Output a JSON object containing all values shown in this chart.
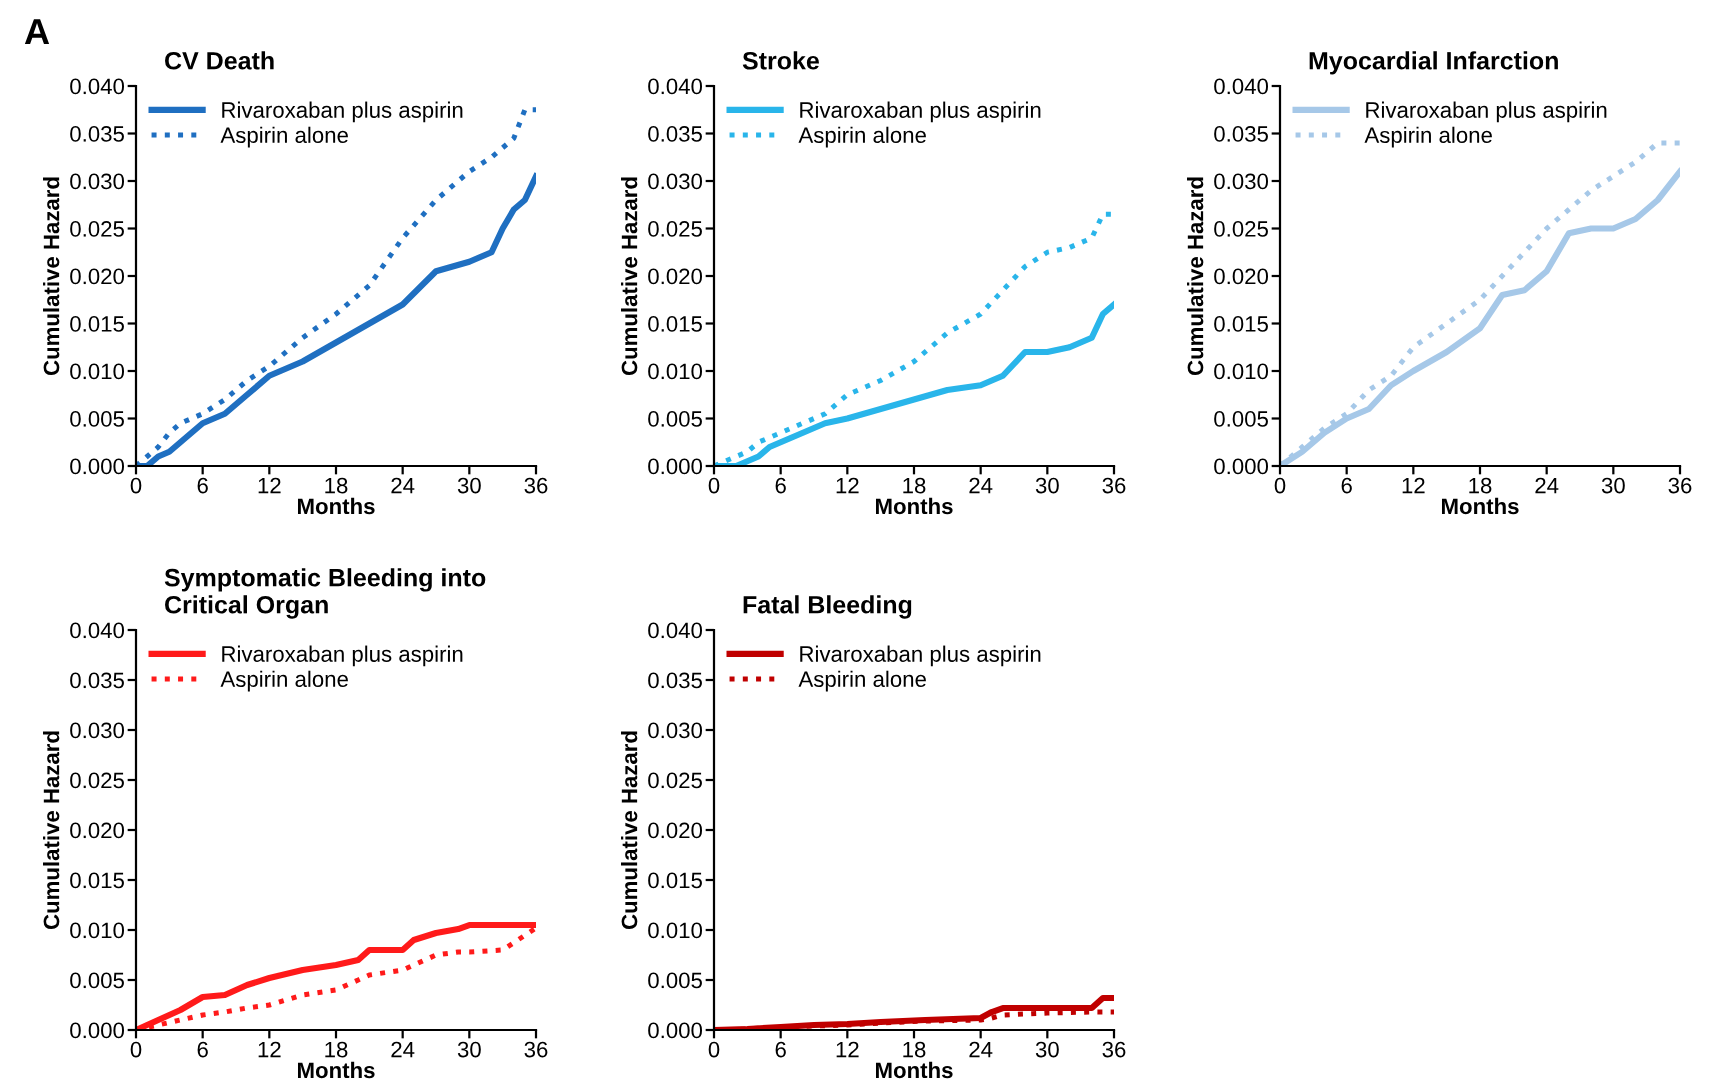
{
  "chart_data": [
    {
      "type": "line",
      "title": "CV Death",
      "annotations": [
        "A"
      ],
      "xlabel": "Months",
      "ylabel": "Cumulative Hazard",
      "legend": "top left",
      "grid": false,
      "xlim": [
        0,
        36
      ],
      "xticks": [
        0,
        6,
        12,
        18,
        24,
        30,
        36
      ],
      "ylim": [
        0,
        0.04
      ],
      "yticks": [
        {
          "value": 0,
          "label": "0.000"
        },
        {
          "value": 0.005,
          "label": "0.005"
        },
        {
          "value": 0.01,
          "label": "0.010"
        },
        {
          "value": 0.015,
          "label": "0.015"
        },
        {
          "value": 0.02,
          "label": "0.020"
        },
        {
          "value": 0.025,
          "label": "0.025"
        },
        {
          "value": 0.03,
          "label": "0.030"
        },
        {
          "value": 0.035,
          "label": "0.035"
        },
        {
          "value": 0.04,
          "label": "0.040"
        }
      ],
      "series": [
        {
          "name": "Rivaroxaban plus aspirin",
          "color": "#1f6fc1",
          "line_style": "solid",
          "x": [
            0,
            1,
            2,
            3,
            4,
            6,
            8,
            10,
            12,
            15,
            18,
            21,
            24,
            27,
            30,
            32,
            33,
            34,
            35,
            36
          ],
          "values": [
            0,
            0,
            0.001,
            0.0015,
            0.0025,
            0.0045,
            0.0055,
            0.0075,
            0.0095,
            0.011,
            0.013,
            0.015,
            0.017,
            0.0205,
            0.0215,
            0.0225,
            0.025,
            0.027,
            0.028,
            0.0305
          ]
        },
        {
          "name": "Aspirin alone",
          "color": "#1f6fc1",
          "line_style": "dotted",
          "x": [
            0,
            1,
            2,
            3,
            4,
            6,
            8,
            10,
            12,
            15,
            18,
            21,
            24,
            27,
            30,
            32,
            33,
            34,
            35,
            36
          ],
          "values": [
            0,
            0.001,
            0.002,
            0.0035,
            0.0045,
            0.0055,
            0.007,
            0.009,
            0.0105,
            0.0135,
            0.016,
            0.019,
            0.024,
            0.028,
            0.031,
            0.0325,
            0.0335,
            0.0345,
            0.0375,
            0.0375
          ]
        }
      ]
    },
    {
      "type": "line",
      "title": "Stroke",
      "xlabel": "Months",
      "ylabel": "Cumulative Hazard",
      "legend": "top left",
      "grid": false,
      "xlim": [
        0,
        36
      ],
      "xticks": [
        0,
        6,
        12,
        18,
        24,
        30,
        36
      ],
      "ylim": [
        0,
        0.04
      ],
      "yticks": [
        {
          "value": 0,
          "label": "0.000"
        },
        {
          "value": 0.005,
          "label": "0.005"
        },
        {
          "value": 0.01,
          "label": "0.010"
        },
        {
          "value": 0.015,
          "label": "0.015"
        },
        {
          "value": 0.02,
          "label": "0.020"
        },
        {
          "value": 0.025,
          "label": "0.025"
        },
        {
          "value": 0.03,
          "label": "0.030"
        },
        {
          "value": 0.035,
          "label": "0.035"
        },
        {
          "value": 0.04,
          "label": "0.040"
        }
      ],
      "series": [
        {
          "name": "Rivaroxaban plus aspirin",
          "color": "#29b5ea",
          "line_style": "solid",
          "x": [
            0,
            2,
            3,
            4,
            5,
            6,
            8,
            10,
            12,
            15,
            18,
            21,
            24,
            26,
            28,
            30,
            32,
            33,
            34,
            35,
            36
          ],
          "values": [
            0,
            0,
            0.0005,
            0.001,
            0.002,
            0.0025,
            0.0035,
            0.0045,
            0.005,
            0.006,
            0.007,
            0.008,
            0.0085,
            0.0095,
            0.012,
            0.012,
            0.0125,
            0.013,
            0.0135,
            0.016,
            0.017
          ]
        },
        {
          "name": "Aspirin alone",
          "color": "#29b5ea",
          "line_style": "dotted",
          "x": [
            0,
            2,
            3,
            4,
            5,
            6,
            8,
            10,
            12,
            15,
            18,
            21,
            24,
            26,
            28,
            30,
            32,
            33,
            34,
            35,
            36
          ],
          "values": [
            0,
            0.001,
            0.0015,
            0.0025,
            0.003,
            0.0035,
            0.0045,
            0.0055,
            0.0075,
            0.009,
            0.011,
            0.014,
            0.016,
            0.0185,
            0.021,
            0.0225,
            0.023,
            0.0235,
            0.024,
            0.0265,
            0.0265
          ]
        }
      ]
    },
    {
      "type": "line",
      "title": "Myocardial Infarction",
      "xlabel": "Months",
      "ylabel": "Cumulative Hazard",
      "legend": "top left",
      "grid": false,
      "xlim": [
        0,
        36
      ],
      "xticks": [
        0,
        6,
        12,
        18,
        24,
        30,
        36
      ],
      "ylim": [
        0,
        0.04
      ],
      "yticks": [
        {
          "value": 0,
          "label": "0.000"
        },
        {
          "value": 0.005,
          "label": "0.005"
        },
        {
          "value": 0.01,
          "label": "0.010"
        },
        {
          "value": 0.015,
          "label": "0.015"
        },
        {
          "value": 0.02,
          "label": "0.020"
        },
        {
          "value": 0.025,
          "label": "0.025"
        },
        {
          "value": 0.03,
          "label": "0.030"
        },
        {
          "value": 0.035,
          "label": "0.035"
        },
        {
          "value": 0.04,
          "label": "0.040"
        }
      ],
      "series": [
        {
          "name": "Rivaroxaban plus aspirin",
          "color": "#a6c8e8",
          "line_style": "solid",
          "x": [
            0,
            2,
            4,
            6,
            8,
            10,
            12,
            15,
            18,
            20,
            22,
            24,
            26,
            28,
            30,
            32,
            34,
            35,
            36
          ],
          "values": [
            0,
            0.0015,
            0.0035,
            0.005,
            0.006,
            0.0085,
            0.01,
            0.012,
            0.0145,
            0.018,
            0.0185,
            0.0205,
            0.0245,
            0.025,
            0.025,
            0.026,
            0.028,
            0.0295,
            0.031
          ]
        },
        {
          "name": "Aspirin alone",
          "color": "#a6c8e8",
          "line_style": "dotted",
          "x": [
            0,
            2,
            4,
            6,
            8,
            10,
            12,
            15,
            18,
            20,
            22,
            24,
            26,
            28,
            30,
            32,
            34,
            35,
            36
          ],
          "values": [
            0,
            0.002,
            0.004,
            0.0055,
            0.008,
            0.0095,
            0.0125,
            0.015,
            0.0175,
            0.02,
            0.0225,
            0.025,
            0.027,
            0.029,
            0.0305,
            0.032,
            0.034,
            0.034,
            0.034
          ]
        }
      ]
    },
    {
      "type": "line",
      "title": "Symptomatic Bleeding into\nCritical Organ",
      "xlabel": "Months",
      "ylabel": "Cumulative Hazard",
      "legend": "top left",
      "grid": false,
      "xlim": [
        0,
        36
      ],
      "xticks": [
        0,
        6,
        12,
        18,
        24,
        30,
        36
      ],
      "ylim": [
        0,
        0.04
      ],
      "yticks": [
        {
          "value": 0,
          "label": "0.000"
        },
        {
          "value": 0.005,
          "label": "0.005"
        },
        {
          "value": 0.01,
          "label": "0.010"
        },
        {
          "value": 0.015,
          "label": "0.015"
        },
        {
          "value": 0.02,
          "label": "0.020"
        },
        {
          "value": 0.025,
          "label": "0.025"
        },
        {
          "value": 0.03,
          "label": "0.030"
        },
        {
          "value": 0.035,
          "label": "0.035"
        },
        {
          "value": 0.04,
          "label": "0.040"
        }
      ],
      "series": [
        {
          "name": "Rivaroxaban plus aspirin",
          "color": "#ff1a1a",
          "line_style": "solid",
          "x": [
            0,
            2,
            4,
            6,
            8,
            10,
            12,
            15,
            18,
            20,
            21,
            24,
            25,
            27,
            29,
            30,
            33,
            36
          ],
          "values": [
            0,
            0.001,
            0.002,
            0.0033,
            0.0035,
            0.0045,
            0.0052,
            0.006,
            0.0065,
            0.007,
            0.008,
            0.008,
            0.009,
            0.0097,
            0.0101,
            0.0105,
            0.0105,
            0.0105
          ]
        },
        {
          "name": "Aspirin alone",
          "color": "#ff1a1a",
          "line_style": "dotted",
          "x": [
            0,
            2,
            4,
            6,
            8,
            10,
            12,
            15,
            18,
            20,
            21,
            24,
            25,
            27,
            29,
            30,
            33,
            36
          ],
          "values": [
            0,
            0.0005,
            0.001,
            0.0015,
            0.0018,
            0.0022,
            0.0025,
            0.0035,
            0.004,
            0.005,
            0.0055,
            0.006,
            0.0065,
            0.0075,
            0.0078,
            0.0078,
            0.008,
            0.0102
          ]
        }
      ]
    },
    {
      "type": "line",
      "title": "Fatal Bleeding",
      "xlabel": "Months",
      "ylabel": "Cumulative Hazard",
      "legend": "top left",
      "grid": false,
      "xlim": [
        0,
        36
      ],
      "xticks": [
        0,
        6,
        12,
        18,
        24,
        30,
        36
      ],
      "ylim": [
        0,
        0.04
      ],
      "yticks": [
        {
          "value": 0,
          "label": "0.000"
        },
        {
          "value": 0.005,
          "label": "0.005"
        },
        {
          "value": 0.01,
          "label": "0.010"
        },
        {
          "value": 0.015,
          "label": "0.015"
        },
        {
          "value": 0.02,
          "label": "0.020"
        },
        {
          "value": 0.025,
          "label": "0.025"
        },
        {
          "value": 0.03,
          "label": "0.030"
        },
        {
          "value": 0.035,
          "label": "0.035"
        },
        {
          "value": 0.04,
          "label": "0.040"
        }
      ],
      "series": [
        {
          "name": "Rivaroxaban plus aspirin",
          "color": "#c00000",
          "line_style": "solid",
          "x": [
            0,
            3,
            6,
            9,
            12,
            15,
            19,
            24,
            25,
            26,
            30,
            34,
            35,
            36
          ],
          "values": [
            0,
            0.0001,
            0.0003,
            0.0005,
            0.0006,
            0.0008,
            0.001,
            0.0012,
            0.0018,
            0.0022,
            0.0022,
            0.0022,
            0.0032,
            0.0032
          ]
        },
        {
          "name": "Aspirin alone",
          "color": "#c00000",
          "line_style": "dotted",
          "x": [
            0,
            3,
            6,
            9,
            12,
            15,
            19,
            24,
            25,
            26,
            30,
            34,
            35,
            36
          ],
          "values": [
            0,
            0.0001,
            0.0003,
            0.0004,
            0.0005,
            0.0007,
            0.0009,
            0.001,
            0.0012,
            0.0015,
            0.0017,
            0.0018,
            0.0018,
            0.0018
          ]
        }
      ]
    }
  ]
}
